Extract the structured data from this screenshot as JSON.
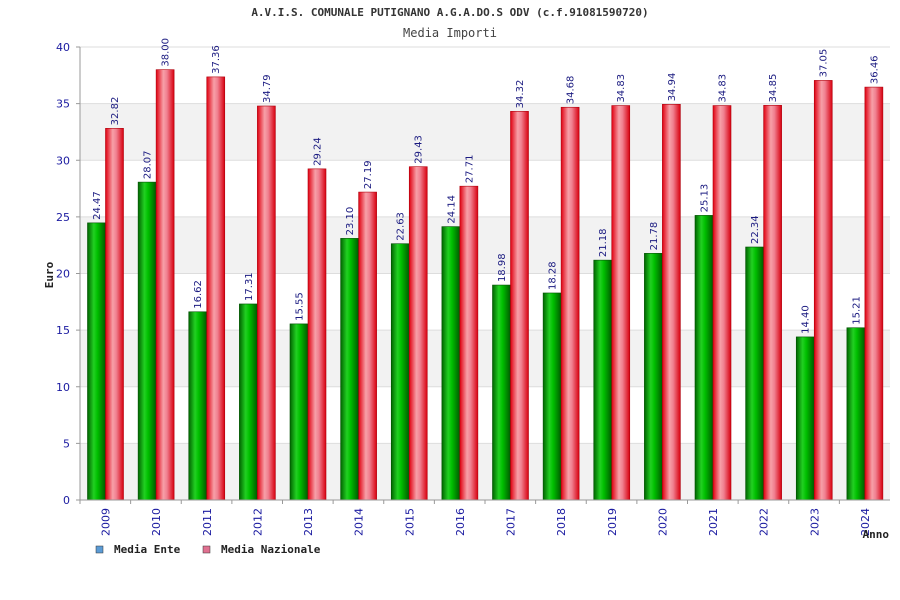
{
  "chart_data": {
    "type": "bar",
    "title": "A.V.I.S. COMUNALE PUTIGNANO A.G.A.DO.S ODV (c.f.91081590720)",
    "subtitle": "Media Importi",
    "ylabel": "Euro",
    "xlabel": "Anno",
    "ylim": [
      0,
      40
    ],
    "yticks": [
      0,
      5,
      10,
      15,
      20,
      25,
      30,
      35,
      40
    ],
    "grid": true,
    "legend_position": "bottom-left",
    "categories": [
      "2009",
      "2010",
      "2011",
      "2012",
      "2013",
      "2014",
      "2015",
      "2016",
      "2017",
      "2018",
      "2019",
      "2020",
      "2021",
      "2022",
      "2023",
      "2024"
    ],
    "series": [
      {
        "name": "Media Ente",
        "color": "#00b000",
        "legend_color": "#5b9bd5",
        "values": [
          24.47,
          28.07,
          16.62,
          17.31,
          15.55,
          23.1,
          22.63,
          24.14,
          18.98,
          18.28,
          21.18,
          21.78,
          25.13,
          22.34,
          14.4,
          15.21
        ],
        "labels": [
          "24.47",
          "28.07",
          "16.62",
          "17.31",
          "15.55",
          "23.10",
          "22.63",
          "24.14",
          "18.98",
          "18.28",
          "21.18",
          "21.78",
          "25.13",
          "22.34",
          "14.40",
          "15.21"
        ]
      },
      {
        "name": "Media Nazionale",
        "color": "#e8101e",
        "legend_color": "#e07090",
        "values": [
          32.82,
          38.0,
          37.36,
          34.79,
          29.24,
          27.19,
          29.43,
          27.71,
          34.32,
          34.68,
          34.83,
          34.94,
          34.83,
          34.85,
          37.05,
          36.46
        ],
        "labels": [
          "32.82",
          "38.00",
          "37.36",
          "34.79",
          "29.24",
          "27.19",
          "29.43",
          "27.71",
          "34.32",
          "34.68",
          "34.83",
          "34.94",
          "34.83",
          "34.85",
          "37.05",
          "36.46"
        ]
      }
    ]
  }
}
